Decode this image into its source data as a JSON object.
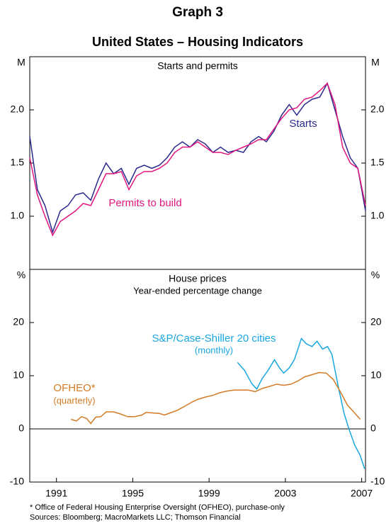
{
  "title": "Graph 3",
  "subtitle": "United States – Housing Indicators",
  "footnote": "*  Office of Federal Housing Enterprise Oversight (OFHEO), purchase-only",
  "sources": "Sources: Bloomberg; MacroMarkets LLC; Thomson Financial",
  "chart_data": [
    {
      "type": "line",
      "title": "Starts and permits",
      "y_unit": "M",
      "xlim": [
        1989.6,
        2007.2
      ],
      "ylim": [
        0.5,
        2.5
      ],
      "yticks": [
        {
          "value": 1,
          "label": "1.0"
        },
        {
          "value": 1.5,
          "label": "1.5"
        },
        {
          "value": 2,
          "label": "2.0"
        }
      ],
      "series": [
        {
          "name": "Starts",
          "color": "#2b2a8c",
          "x": [
            1989.6,
            1990,
            1990.4,
            1990.8,
            1991.2,
            1991.6,
            1992,
            1992.4,
            1992.8,
            1993.2,
            1993.6,
            1994,
            1994.4,
            1994.8,
            1995.2,
            1995.6,
            1996,
            1996.4,
            1996.8,
            1997.2,
            1997.6,
            1998,
            1998.4,
            1998.8,
            1999.2,
            1999.6,
            2000,
            2000.4,
            2000.8,
            2001.2,
            2001.6,
            2002,
            2002.4,
            2002.8,
            2003.2,
            2003.6,
            2004,
            2004.4,
            2004.8,
            2005.2,
            2005.6,
            2006,
            2006.4,
            2006.8,
            2007.2
          ],
          "values": [
            1.75,
            1.25,
            1.1,
            0.85,
            1.05,
            1.1,
            1.2,
            1.22,
            1.15,
            1.35,
            1.5,
            1.4,
            1.45,
            1.3,
            1.45,
            1.48,
            1.45,
            1.48,
            1.55,
            1.65,
            1.7,
            1.65,
            1.72,
            1.68,
            1.6,
            1.65,
            1.6,
            1.62,
            1.6,
            1.7,
            1.75,
            1.7,
            1.8,
            1.95,
            2.05,
            1.95,
            2.05,
            2.1,
            2.12,
            2.25,
            2.0,
            1.75,
            1.55,
            1.45,
            1.05
          ]
        },
        {
          "name": "Permits to build",
          "color": "#e0167f",
          "x": [
            1989.6,
            1990,
            1990.4,
            1990.8,
            1991.2,
            1991.6,
            1992,
            1992.4,
            1992.8,
            1993.2,
            1993.6,
            1994,
            1994.4,
            1994.8,
            1995.2,
            1995.6,
            1996,
            1996.4,
            1996.8,
            1997.2,
            1997.6,
            1998,
            1998.4,
            1998.8,
            1999.2,
            1999.6,
            2000,
            2000.4,
            2000.8,
            2001.2,
            2001.6,
            2002,
            2002.4,
            2002.8,
            2003.2,
            2003.6,
            2004,
            2004.4,
            2004.8,
            2005.2,
            2005.6,
            2006,
            2006.4,
            2006.8,
            2007.2
          ],
          "values": [
            1.55,
            1.2,
            1.0,
            0.82,
            0.95,
            1.0,
            1.05,
            1.12,
            1.1,
            1.25,
            1.4,
            1.4,
            1.42,
            1.25,
            1.38,
            1.42,
            1.42,
            1.45,
            1.5,
            1.6,
            1.65,
            1.65,
            1.7,
            1.65,
            1.6,
            1.6,
            1.58,
            1.62,
            1.65,
            1.68,
            1.72,
            1.72,
            1.82,
            1.92,
            2.0,
            2.02,
            2.1,
            2.12,
            2.18,
            2.25,
            2.05,
            1.65,
            1.5,
            1.45,
            1.1
          ]
        }
      ]
    },
    {
      "type": "line",
      "title": "House prices",
      "subtitle": "Year-ended percentage change",
      "y_unit": "%",
      "xlim": [
        1989.6,
        2007.2
      ],
      "xticks": [
        1991,
        1995,
        1999,
        2003,
        2007
      ],
      "ylim": [
        -10,
        30
      ],
      "yticks": [
        -10,
        0,
        10,
        20
      ],
      "series": [
        {
          "name": "S&P/Case-Shiller 20 cities",
          "frequency": "(monthly)",
          "color": "#1aa6e0",
          "x": [
            2000.49,
            2000.86,
            2001.24,
            2001.5,
            2001.79,
            2002.09,
            2002.43,
            2002.69,
            2002.91,
            2003.21,
            2003.47,
            2003.84,
            2004.1,
            2004.4,
            2004.66,
            2004.95,
            2005.21,
            2005.44,
            2005.77,
            2006.07,
            2006.33,
            2006.63,
            2006.92,
            2007.15
          ],
          "values": [
            12.5,
            11,
            8.5,
            7.5,
            9.5,
            11,
            13,
            11.5,
            10.5,
            11.5,
            13,
            17,
            16,
            15.5,
            16.5,
            15,
            15.5,
            14,
            8,
            3,
            0,
            -3,
            -5,
            -7.5
          ]
        },
        {
          "name": "OFHEO*",
          "frequency": "(quarterly)",
          "color": "#d27b24",
          "x": [
            1991.76,
            1992.05,
            1992.31,
            1992.57,
            1992.8,
            1993.06,
            1993.32,
            1993.61,
            1993.99,
            1994.36,
            1994.73,
            1995.1,
            1995.47,
            1995.7,
            1996.03,
            1996.4,
            1996.66,
            1996.96,
            1997.33,
            1997.7,
            1998.08,
            1998.45,
            1998.82,
            1999.19,
            1999.56,
            1999.93,
            2000.31,
            2000.68,
            2001.05,
            2001.42,
            2001.79,
            2002.17,
            2002.54,
            2002.91,
            2003.28,
            2003.65,
            2004.02,
            2004.4,
            2004.77,
            2005.14,
            2005.51,
            2005.88,
            2006.25,
            2006.63,
            2006.92
          ],
          "values": [
            1.8,
            1.5,
            2.3,
            2.0,
            1.0,
            2.2,
            2.3,
            3.2,
            3.2,
            2.8,
            2.3,
            2.3,
            2.6,
            3.1,
            3.0,
            2.9,
            2.6,
            3.0,
            3.5,
            4.2,
            5.0,
            5.6,
            6.0,
            6.3,
            6.8,
            7.1,
            7.3,
            7.3,
            7.3,
            7.0,
            7.6,
            8.0,
            8.4,
            8.2,
            8.4,
            9.0,
            9.8,
            10.2,
            10.6,
            10.5,
            9.3,
            7.0,
            4.5,
            3.0,
            1.8
          ]
        }
      ]
    }
  ]
}
